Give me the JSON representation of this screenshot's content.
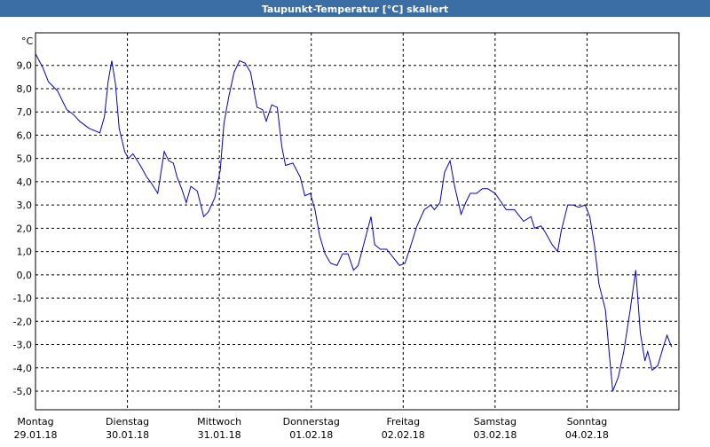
{
  "chart_data": {
    "type": "line",
    "title": "Taupunkt-Temperatur [°C] skaliert",
    "y_unit": "°C",
    "xlim": [
      0,
      7
    ],
    "ylim": [
      -5.8,
      10.4
    ],
    "grid": true,
    "xticks": [
      {
        "value": 0,
        "label": "Montag"
      },
      {
        "value": 1,
        "label": "Dienstag"
      },
      {
        "value": 2,
        "label": "Mittwoch"
      },
      {
        "value": 3,
        "label": "Donnerstag"
      },
      {
        "value": 4,
        "label": "Freitag"
      },
      {
        "value": 5,
        "label": "Samstag"
      },
      {
        "value": 6,
        "label": "Sonntag"
      }
    ],
    "x_dates": [
      "29.01.18",
      "30.01.18",
      "31.01.18",
      "01.02.18",
      "02.02.18",
      "03.02.18",
      "04.02.18"
    ],
    "yticks": [
      {
        "value": 9,
        "label": "9,0"
      },
      {
        "value": 8,
        "label": "8,0"
      },
      {
        "value": 7,
        "label": "7,0"
      },
      {
        "value": 6,
        "label": "6,0"
      },
      {
        "value": 5,
        "label": "5,0"
      },
      {
        "value": 4,
        "label": "4,0"
      },
      {
        "value": 3,
        "label": "3,0"
      },
      {
        "value": 2,
        "label": "2,0"
      },
      {
        "value": 1,
        "label": "1,0"
      },
      {
        "value": 0,
        "label": "0,0"
      },
      {
        "value": -1,
        "label": "-1,0"
      },
      {
        "value": -2,
        "label": "-2,0"
      },
      {
        "value": -3,
        "label": "-3,0"
      },
      {
        "value": -4,
        "label": "-4,0"
      },
      {
        "value": -5,
        "label": "-5,0"
      }
    ],
    "series": [
      {
        "color": "#0000cc",
        "x": [
          0,
          0.08,
          0.14,
          0.24,
          0.34,
          0.41,
          0.48,
          0.58,
          0.7,
          0.75,
          0.79,
          0.83,
          0.87,
          0.91,
          0.97,
          1.01,
          1.06,
          1.14,
          1.21,
          1.25,
          1.33,
          1.4,
          1.45,
          1.5,
          1.54,
          1.59,
          1.64,
          1.69,
          1.76,
          1.83,
          1.88,
          1.95,
          2.01,
          2.05,
          2.1,
          2.16,
          2.22,
          2.28,
          2.34,
          2.41,
          2.47,
          2.51,
          2.57,
          2.63,
          2.68,
          2.72,
          2.8,
          2.88,
          2.93,
          2.99,
          3.04,
          3.09,
          3.15,
          3.21,
          3.28,
          3.34,
          3.4,
          3.46,
          3.51,
          3.57,
          3.65,
          3.69,
          3.75,
          3.82,
          3.9,
          3.96,
          4.02,
          4.07,
          4.15,
          4.23,
          4.3,
          4.34,
          4.4,
          4.45,
          4.51,
          4.56,
          4.63,
          4.68,
          4.73,
          4.8,
          4.86,
          4.92,
          5.0,
          5.07,
          5.12,
          5.21,
          5.31,
          5.39,
          5.43,
          5.5,
          5.55,
          5.62,
          5.68,
          5.72,
          5.79,
          5.85,
          5.91,
          5.98,
          6.03,
          6.08,
          6.13,
          6.2,
          6.24,
          6.28,
          6.34,
          6.4,
          6.47,
          6.53,
          6.58,
          6.63,
          6.66,
          6.71,
          6.77,
          6.83,
          6.87,
          6.92
        ],
        "values": [
          9.5,
          8.9,
          8.3,
          7.9,
          7.1,
          6.9,
          6.6,
          6.3,
          6.1,
          6.8,
          8.3,
          9.2,
          8.2,
          6.3,
          5.3,
          5.0,
          5.2,
          4.7,
          4.2,
          4.0,
          3.5,
          5.3,
          4.9,
          4.8,
          4.2,
          3.7,
          3.1,
          3.8,
          3.6,
          2.5,
          2.7,
          3.3,
          4.5,
          6.5,
          7.6,
          8.7,
          9.2,
          9.1,
          8.7,
          7.2,
          7.1,
          6.6,
          7.3,
          7.2,
          5.5,
          4.7,
          4.8,
          4.2,
          3.4,
          3.5,
          2.8,
          1.7,
          0.9,
          0.5,
          0.4,
          0.9,
          0.9,
          0.2,
          0.4,
          1.3,
          2.5,
          1.3,
          1.1,
          1.1,
          0.7,
          0.4,
          0.5,
          1.1,
          2.1,
          2.8,
          3.0,
          2.8,
          3.1,
          4.4,
          4.9,
          3.8,
          2.6,
          3.1,
          3.5,
          3.5,
          3.7,
          3.7,
          3.5,
          3.1,
          2.8,
          2.8,
          2.3,
          2.5,
          2.0,
          2.1,
          1.8,
          1.3,
          1.0,
          1.9,
          3.0,
          3.0,
          2.9,
          3.0,
          2.5,
          1.3,
          -0.4,
          -1.5,
          -3.3,
          -5.0,
          -4.4,
          -3.3,
          -1.5,
          0.2,
          -2.5,
          -3.7,
          -3.3,
          -4.1,
          -3.9,
          -3.1,
          -2.6,
          -3.1
        ]
      }
    ]
  }
}
